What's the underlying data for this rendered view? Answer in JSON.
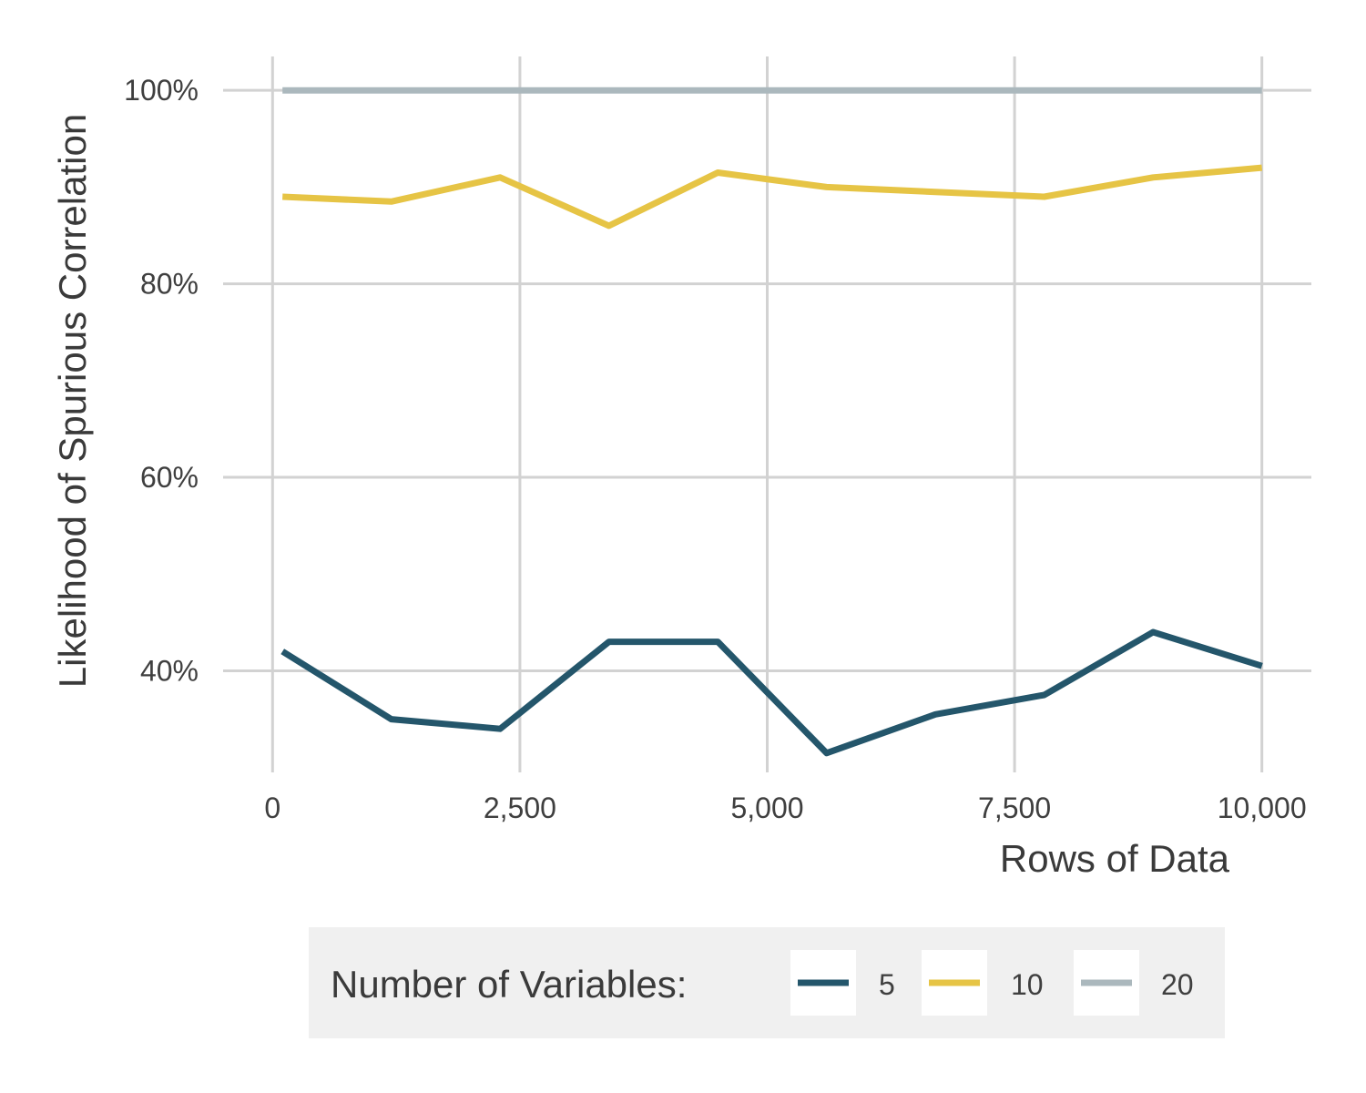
{
  "chart_data": {
    "type": "line",
    "xlabel": "Rows of Data",
    "ylabel": "Likelihood of Spurious Correlation",
    "xlim": [
      -500,
      10500
    ],
    "ylim": [
      0.295,
      1.035
    ],
    "x_ticks": [
      0,
      2500,
      5000,
      7500,
      10000
    ],
    "x_tick_labels": [
      "0",
      "2,500",
      "5,000",
      "7,500",
      "10,000"
    ],
    "y_ticks": [
      0.4,
      0.6,
      0.8,
      1.0
    ],
    "y_tick_labels": [
      "40%",
      "60%",
      "80%",
      "100%"
    ],
    "grid": true,
    "x": [
      100,
      1200,
      2300,
      3400,
      4500,
      5600,
      6700,
      7800,
      8900,
      10000
    ],
    "series": [
      {
        "name": "5",
        "color": "#24566b",
        "values": [
          0.42,
          0.35,
          0.34,
          0.43,
          0.43,
          0.315,
          0.355,
          0.375,
          0.44,
          0.405
        ]
      },
      {
        "name": "10",
        "color": "#e6c445",
        "values": [
          0.89,
          0.885,
          0.91,
          0.86,
          0.915,
          0.9,
          0.895,
          0.89,
          0.91,
          0.92
        ]
      },
      {
        "name": "20",
        "color": "#abb8bd",
        "values": [
          1.0,
          1.0,
          1.0,
          1.0,
          1.0,
          1.0,
          1.0,
          1.0,
          1.0,
          1.0
        ]
      }
    ],
    "legend": {
      "title": "Number of Variables:",
      "position": "bottom"
    }
  }
}
